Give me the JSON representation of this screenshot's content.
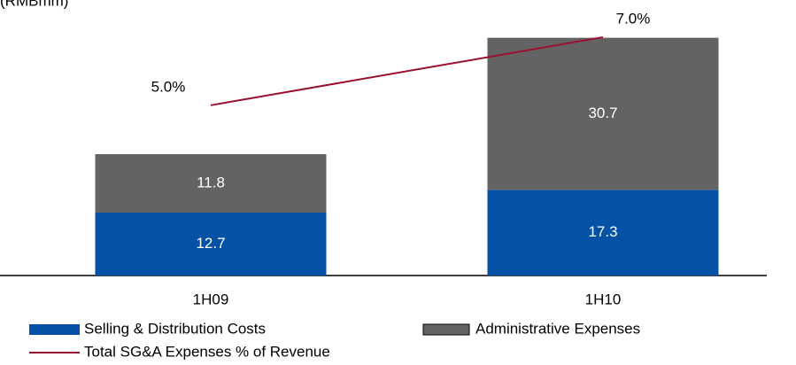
{
  "chart_data": {
    "type": "stacked-bar-line",
    "title": "(RMBmm)",
    "categories": [
      "1H09",
      "1H10"
    ],
    "series": [
      {
        "name": "Selling & Distribution Costs",
        "color": "#0451a5",
        "values": [
          12.7,
          17.3
        ]
      },
      {
        "name": "Administrative Expenses",
        "color": "#636363",
        "values": [
          11.8,
          30.7
        ]
      },
      {
        "name": "Total SG&A Expenses % of Revenue",
        "color": "#9b1030",
        "axis": "y2",
        "values": [
          5.0,
          7.0
        ],
        "value_labels": [
          "5.0%",
          "7.0%"
        ]
      }
    ],
    "ylim": [
      0,
      55
    ],
    "y2lim": [
      0,
      8
    ]
  }
}
